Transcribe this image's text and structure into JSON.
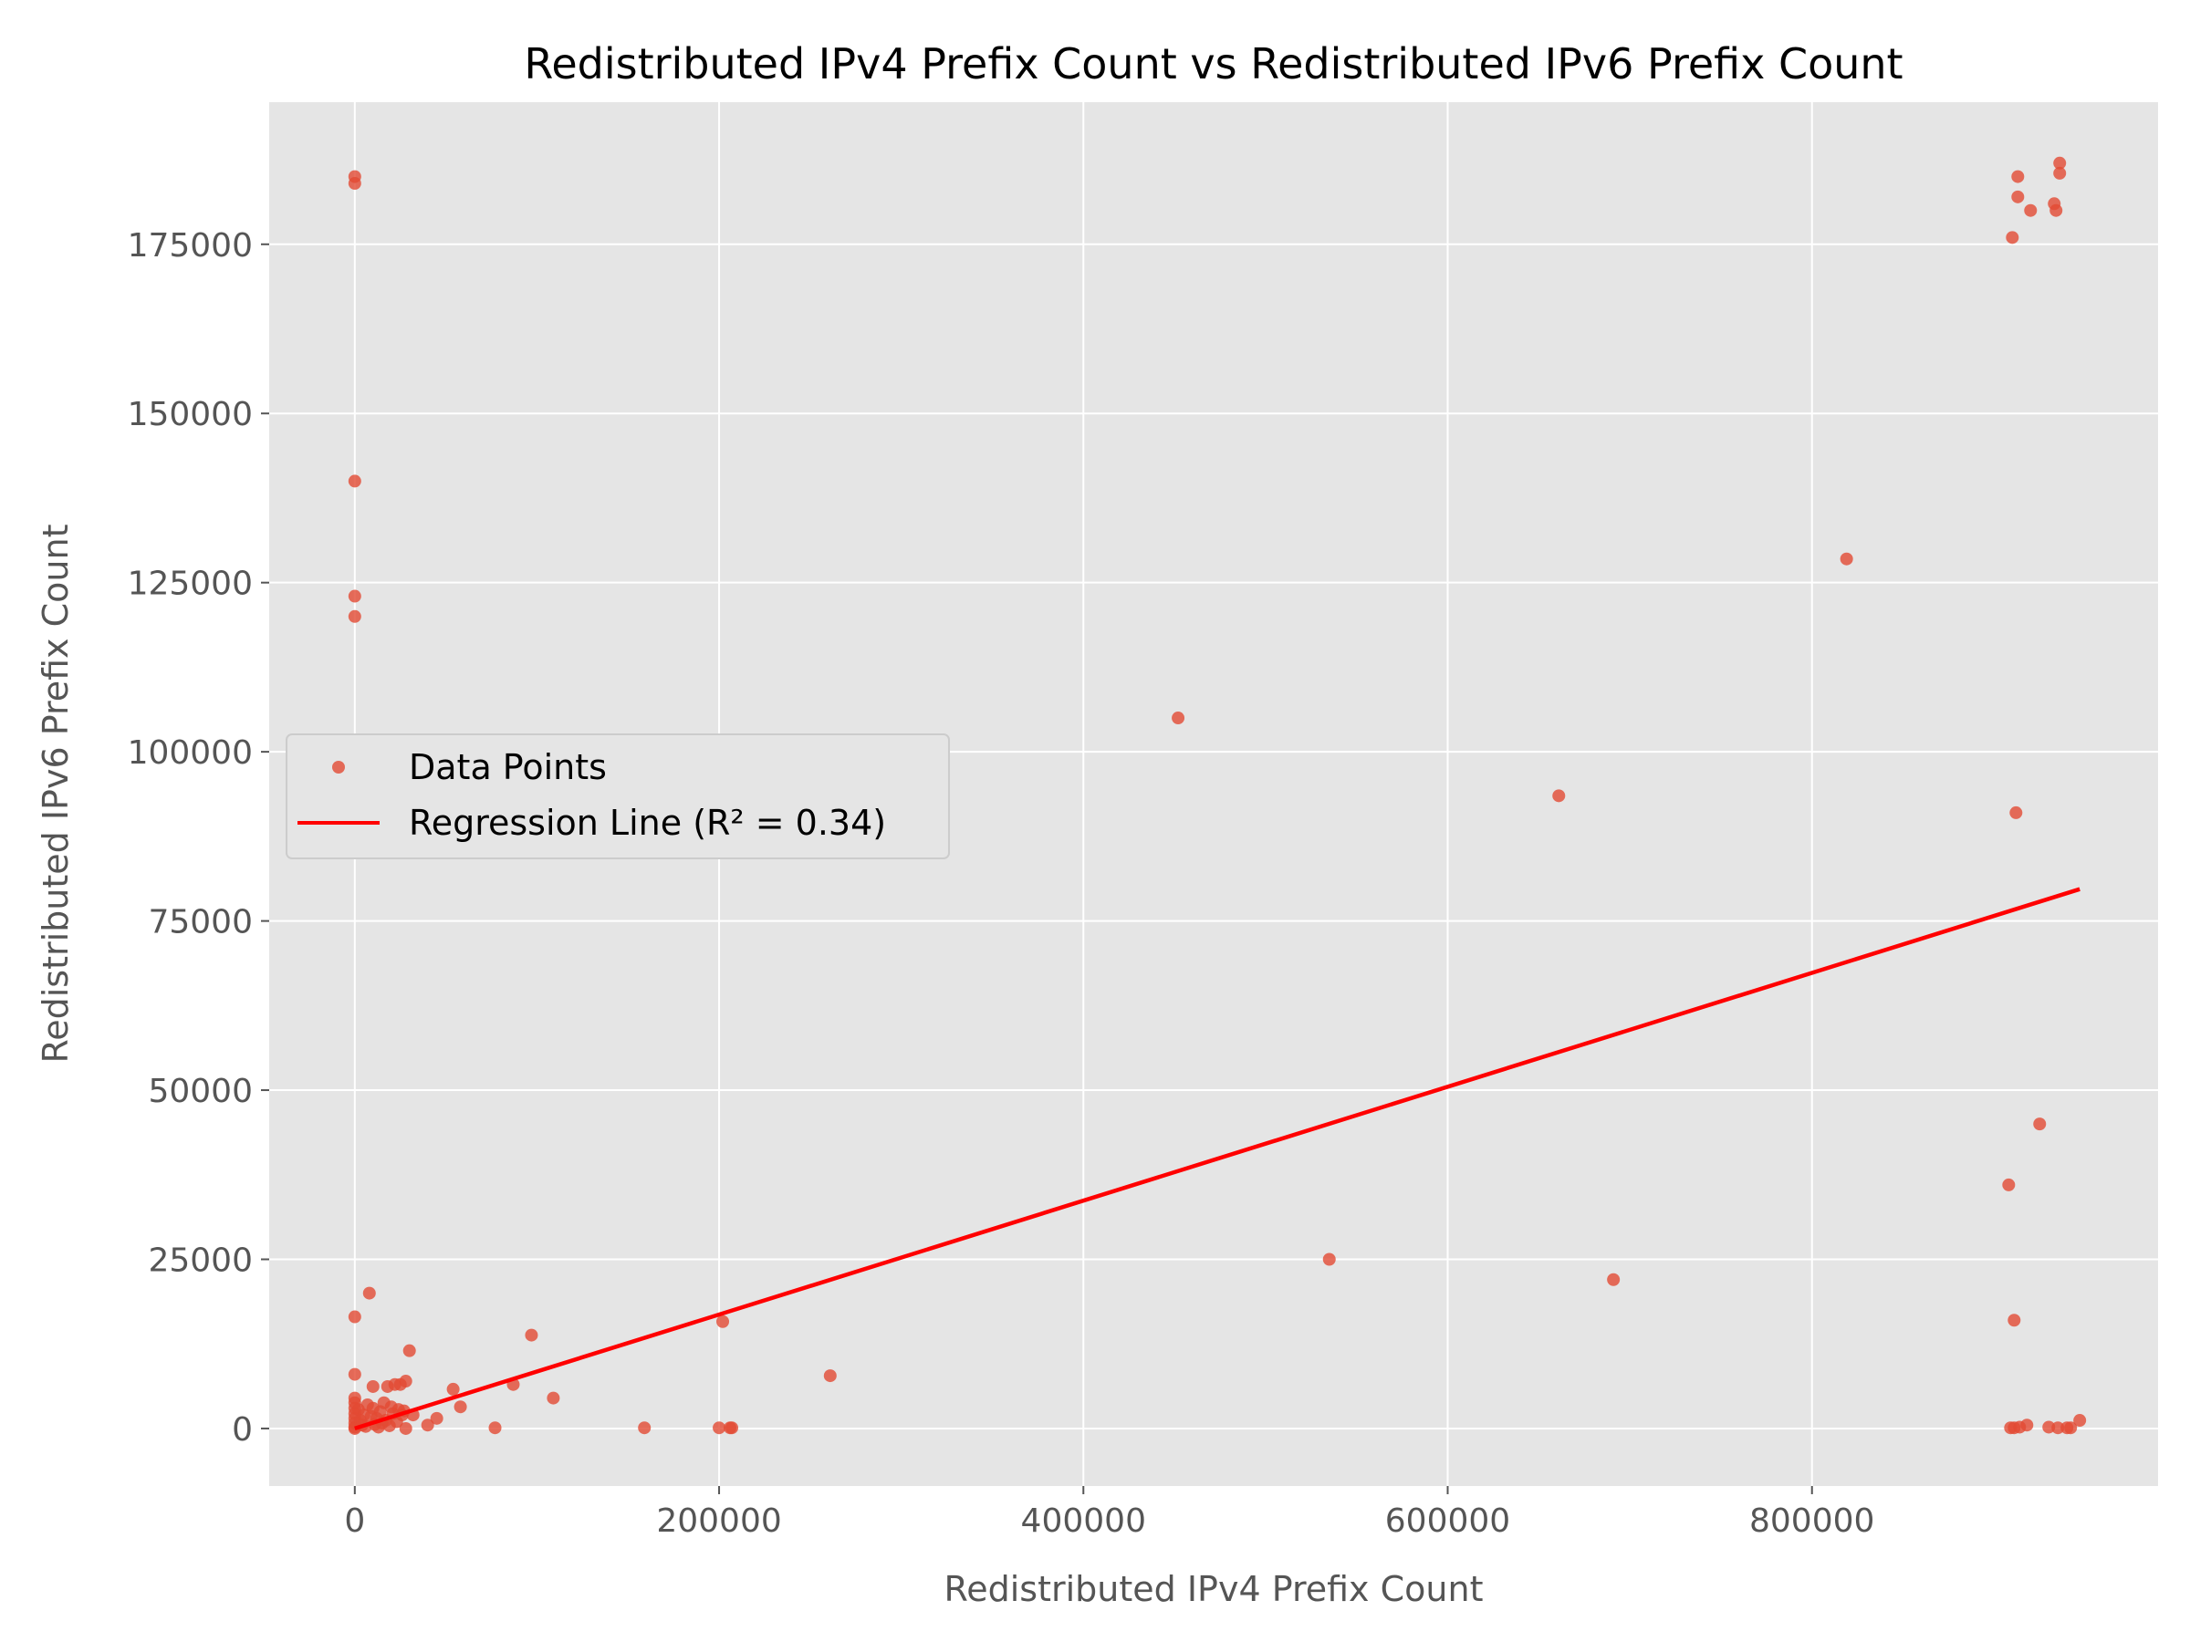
{
  "colors": {
    "plot_background": "#e5e5e5",
    "grid": "#ffffff",
    "points": "#e24a33",
    "regression_line": "#ff0000",
    "legend_background": "#e5e5e5",
    "legend_border": "#cccccc"
  },
  "chart_data": {
    "type": "scatter",
    "title": "Redistributed IPv4 Prefix Count vs Redistributed IPv6 Prefix Count",
    "xlabel": "Redistributed IPv4 Prefix Count",
    "ylabel": "Redistributed IPv6 Prefix Count",
    "xlim": [
      -47000,
      990000
    ],
    "ylim": [
      -8500,
      196000
    ],
    "xticks": [
      0,
      200000,
      400000,
      600000,
      800000
    ],
    "yticks": [
      0,
      25000,
      50000,
      75000,
      100000,
      125000,
      150000,
      175000
    ],
    "grid": true,
    "legend": {
      "placement": "center-left",
      "entries": [
        "Data Points",
        "Regression Line (R² = 0.34)"
      ]
    },
    "series": [
      {
        "name": "Data Points",
        "kind": "scatter",
        "points": [
          [
            0,
            185000
          ],
          [
            0,
            184000
          ],
          [
            0,
            140000
          ],
          [
            0,
            123000
          ],
          [
            0,
            120000
          ],
          [
            0,
            16500
          ],
          [
            0,
            8000
          ],
          [
            0,
            4500
          ],
          [
            0,
            3800
          ],
          [
            0,
            3000
          ],
          [
            0,
            2200
          ],
          [
            0,
            1500
          ],
          [
            0,
            800
          ],
          [
            0,
            200
          ],
          [
            0,
            0
          ],
          [
            2000,
            2800
          ],
          [
            3000,
            1200
          ],
          [
            4000,
            500
          ],
          [
            5000,
            2000
          ],
          [
            6000,
            300
          ],
          [
            7000,
            3500
          ],
          [
            8000,
            20000
          ],
          [
            9000,
            1800
          ],
          [
            10000,
            6200
          ],
          [
            10000,
            3000
          ],
          [
            11000,
            600
          ],
          [
            12000,
            1500
          ],
          [
            13000,
            200
          ],
          [
            14000,
            2500
          ],
          [
            15000,
            800
          ],
          [
            16000,
            3800
          ],
          [
            17000,
            1200
          ],
          [
            18000,
            6200
          ],
          [
            19000,
            400
          ],
          [
            20000,
            3200
          ],
          [
            21000,
            2200
          ],
          [
            22000,
            6500
          ],
          [
            23000,
            1000
          ],
          [
            24000,
            2800
          ],
          [
            25000,
            6500
          ],
          [
            26000,
            2000
          ],
          [
            27000,
            2600
          ],
          [
            28000,
            7000
          ],
          [
            28000,
            0
          ],
          [
            30000,
            11500
          ],
          [
            32000,
            2000
          ],
          [
            40000,
            500
          ],
          [
            45000,
            1500
          ],
          [
            54000,
            5800
          ],
          [
            58000,
            3200
          ],
          [
            77000,
            100
          ],
          [
            87000,
            6500
          ],
          [
            97000,
            13800
          ],
          [
            109000,
            4500
          ],
          [
            159000,
            100
          ],
          [
            200000,
            100
          ],
          [
            202000,
            15800
          ],
          [
            206000,
            100
          ],
          [
            207000,
            100
          ],
          [
            261000,
            7800
          ],
          [
            452000,
            105000
          ],
          [
            535000,
            25000
          ],
          [
            661000,
            93500
          ],
          [
            691000,
            22000
          ],
          [
            819000,
            128500
          ],
          [
            908000,
            36000
          ],
          [
            909000,
            100
          ],
          [
            910000,
            176000
          ],
          [
            911000,
            16000
          ],
          [
            911000,
            100
          ],
          [
            912000,
            91000
          ],
          [
            913000,
            182000
          ],
          [
            913000,
            185000
          ],
          [
            914000,
            200
          ],
          [
            918000,
            500
          ],
          [
            920000,
            180000
          ],
          [
            925000,
            45000
          ],
          [
            930000,
            200
          ],
          [
            933000,
            181000
          ],
          [
            934000,
            180000
          ],
          [
            935000,
            100
          ],
          [
            936000,
            187000
          ],
          [
            936000,
            185500
          ],
          [
            940000,
            100
          ],
          [
            942000,
            100
          ],
          [
            947000,
            1200
          ]
        ]
      },
      {
        "name": "Regression Line (R² = 0.34)",
        "kind": "line",
        "points": [
          [
            0,
            0
          ],
          [
            947000,
            79700
          ]
        ]
      }
    ]
  }
}
